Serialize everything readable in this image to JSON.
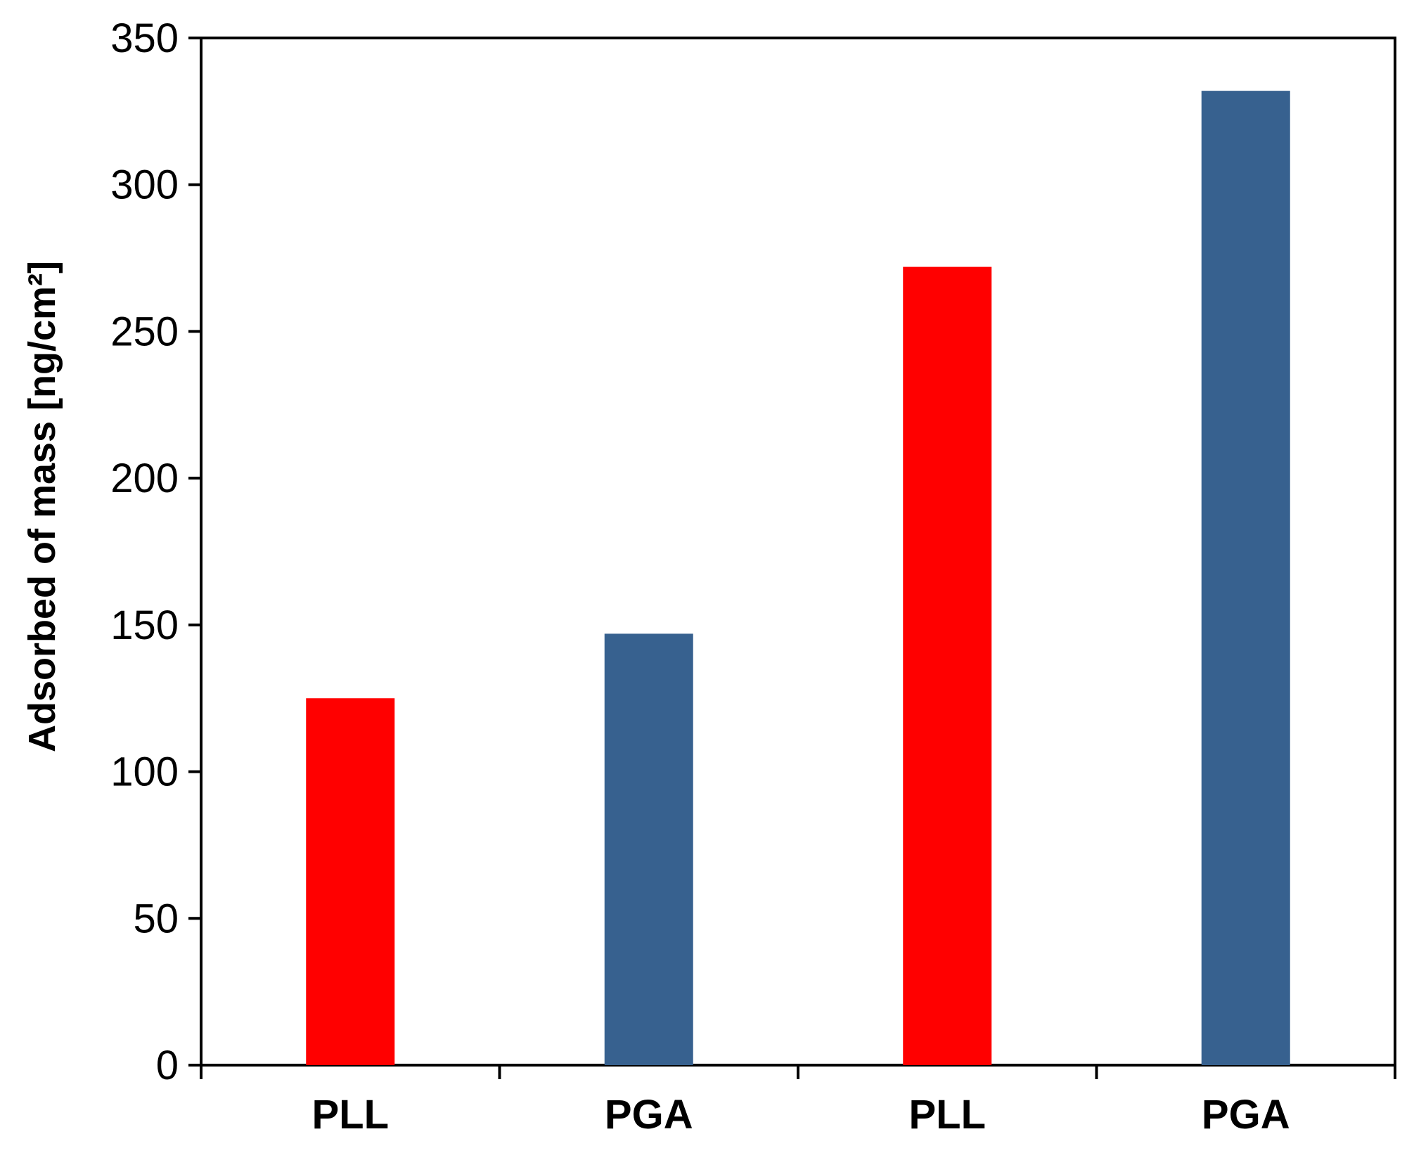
{
  "chart_data": {
    "type": "bar",
    "categories": [
      "PLL",
      "PGA",
      "PLL",
      "PGA"
    ],
    "values": [
      125,
      147,
      272,
      332
    ],
    "bar_colors": [
      "#ff0000",
      "#37618f",
      "#ff0000",
      "#37618f"
    ],
    "title": "",
    "xlabel": "",
    "ylabel": "Adsorbed of mass [ng/cm²]",
    "ylim": [
      0,
      350
    ],
    "yticks": [
      "0",
      "50",
      "100",
      "150",
      "200",
      "250",
      "300",
      "350"
    ],
    "grid": false,
    "legend": false
  }
}
